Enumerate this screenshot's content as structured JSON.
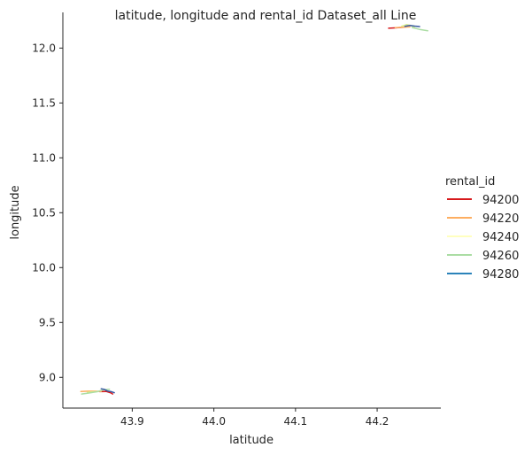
{
  "chart_data": {
    "type": "line",
    "title": "latitude, longitude and rental_id Dataset_all Line",
    "xlabel": "latitude",
    "ylabel": "longitude",
    "xlim": [
      43.815,
      44.278
    ],
    "ylim": [
      8.72,
      12.325
    ],
    "xticks": [
      "43.9",
      "44.0",
      "44.1",
      "44.2"
    ],
    "xtick_values": [
      43.9,
      44.0,
      44.1,
      44.2
    ],
    "yticks": [
      "9.0",
      "9.5",
      "10.0",
      "10.5",
      "11.0",
      "11.5",
      "12.0"
    ],
    "ytick_values": [
      9.0,
      9.5,
      10.0,
      10.5,
      11.0,
      11.5,
      12.0
    ],
    "grid": false,
    "legend": {
      "title": "rental_id",
      "placement": "right",
      "entries": [
        {
          "label": "94200",
          "color": "#d7191c"
        },
        {
          "label": "94220",
          "color": "#fdae61"
        },
        {
          "label": "94240",
          "color": "#ffffbf"
        },
        {
          "label": "94260",
          "color": "#abdda4"
        },
        {
          "label": "94280",
          "color": "#2b83ba"
        }
      ]
    },
    "series": [
      {
        "color": "#d7191c",
        "points": [
          [
            43.86,
            8.87
          ],
          [
            43.868,
            8.872
          ],
          [
            43.874,
            8.858
          ],
          [
            43.876,
            8.848
          ],
          [
            44.214,
            12.181
          ],
          [
            44.224,
            12.185
          ],
          [
            44.233,
            12.19
          ]
        ],
        "segments": [
          [
            0,
            3
          ],
          [
            4,
            6
          ]
        ]
      },
      {
        "color": "#fdae61",
        "points": [
          [
            43.837,
            8.872
          ],
          [
            43.846,
            8.874
          ],
          [
            43.855,
            8.874
          ],
          [
            43.862,
            8.872
          ],
          [
            44.222,
            12.186
          ],
          [
            44.232,
            12.19
          ],
          [
            44.24,
            12.193
          ]
        ],
        "segments": [
          [
            0,
            3
          ],
          [
            4,
            6
          ]
        ]
      },
      {
        "color": "#d9ef8b",
        "points": [
          [
            43.845,
            8.864
          ],
          [
            43.852,
            8.868
          ],
          [
            43.858,
            8.87
          ],
          [
            44.23,
            12.198
          ],
          [
            44.236,
            12.214
          ],
          [
            44.242,
            12.205
          ],
          [
            44.246,
            12.185
          ]
        ],
        "segments": [
          [
            0,
            2
          ],
          [
            3,
            6
          ]
        ]
      },
      {
        "color": "#abdda4",
        "points": [
          [
            43.838,
            8.848
          ],
          [
            43.846,
            8.856
          ],
          [
            43.856,
            8.868
          ],
          [
            43.866,
            8.888
          ],
          [
            43.872,
            8.892
          ],
          [
            44.243,
            12.186
          ],
          [
            44.252,
            12.17
          ],
          [
            44.262,
            12.158
          ]
        ],
        "segments": [
          [
            0,
            4
          ],
          [
            5,
            7
          ]
        ]
      },
      {
        "color": "#3b5aa3",
        "points": [
          [
            43.862,
            8.896
          ],
          [
            43.866,
            8.89
          ],
          [
            43.87,
            8.875
          ],
          [
            43.874,
            8.87
          ],
          [
            43.878,
            8.86
          ],
          [
            44.234,
            12.198
          ],
          [
            44.24,
            12.206
          ],
          [
            44.246,
            12.2
          ],
          [
            44.252,
            12.196
          ]
        ],
        "segments": [
          [
            0,
            4
          ],
          [
            5,
            8
          ]
        ]
      }
    ]
  }
}
